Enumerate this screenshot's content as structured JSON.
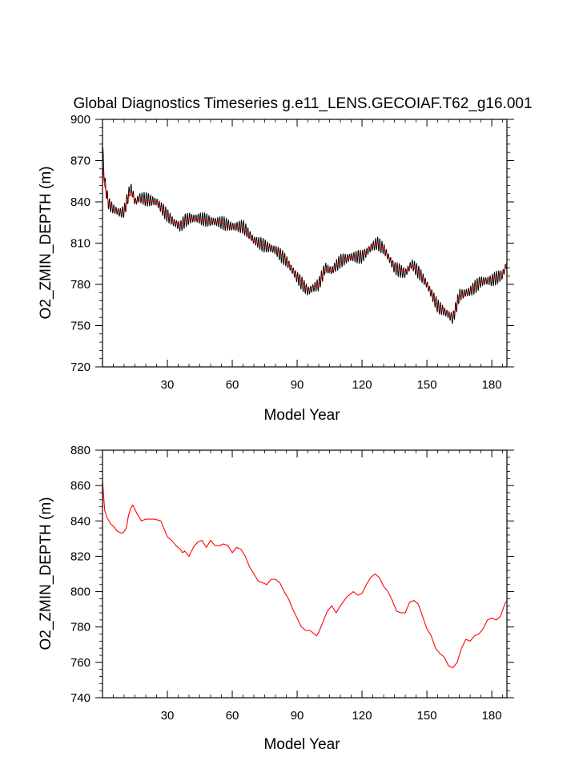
{
  "colors": {
    "mean_line": "#ff0000",
    "monthly_line": "#000000",
    "axis": "#000000",
    "background": "#ffffff"
  },
  "chart_data": [
    {
      "type": "line",
      "title": "Global Diagnostics Timeseries g.e11_LENS.GECOIAF.T62_g16.001",
      "xlabel": "Model Year",
      "ylabel": "O2_ZMIN_DEPTH (m)",
      "xlim": [
        0,
        187
      ],
      "ylim": [
        720,
        900
      ],
      "xticks": [
        30,
        60,
        90,
        120,
        150,
        180
      ],
      "xtick_labels": [
        "30",
        "60",
        "90",
        "120",
        "150",
        "180"
      ],
      "yticks": [
        720,
        750,
        780,
        810,
        840,
        870,
        900
      ],
      "ytick_labels": [
        "720",
        "750",
        "780",
        "810",
        "840",
        "870",
        "900"
      ],
      "monthly_amplitude": 5,
      "series": [
        {
          "name": "monthly",
          "color": "#000000",
          "x": [
            0,
            1,
            2,
            3,
            5,
            8,
            10,
            12,
            13,
            14,
            15,
            16,
            17,
            20,
            25,
            30,
            33,
            36,
            38,
            40,
            45,
            50,
            55,
            60,
            65,
            70,
            75,
            80,
            85,
            90,
            95,
            100,
            103,
            106,
            110,
            115,
            120,
            125,
            127,
            130,
            135,
            140,
            143,
            147,
            150,
            155,
            160,
            162,
            165,
            170,
            175,
            180,
            185,
            187
          ],
          "y": [
            880,
            855,
            845,
            838,
            835,
            832,
            833,
            845,
            850,
            846,
            840,
            841,
            843,
            842,
            840,
            830,
            825,
            822,
            826,
            828,
            828,
            826,
            825,
            822,
            822,
            812,
            808,
            805,
            797,
            785,
            775,
            780,
            792,
            790,
            797,
            800,
            800,
            808,
            810,
            806,
            792,
            788,
            795,
            787,
            780,
            764,
            758,
            755,
            772,
            775,
            782,
            783,
            787,
            795
          ]
        },
        {
          "name": "annual mean",
          "color": "#ff0000",
          "x": [
            0,
            1,
            2,
            3,
            5,
            8,
            10,
            12,
            13,
            14,
            15,
            16,
            17,
            20,
            25,
            30,
            33,
            36,
            38,
            40,
            45,
            50,
            55,
            60,
            65,
            70,
            75,
            80,
            85,
            90,
            95,
            100,
            103,
            106,
            110,
            115,
            120,
            125,
            127,
            130,
            135,
            140,
            143,
            147,
            150,
            155,
            160,
            162,
            165,
            170,
            175,
            180,
            185,
            187
          ],
          "y": [
            865,
            852,
            845,
            838,
            835,
            832,
            833,
            843,
            848,
            845,
            840,
            841,
            841,
            841,
            840,
            830,
            826,
            823,
            826,
            828,
            827,
            826,
            825,
            822,
            821,
            811,
            808,
            806,
            798,
            786,
            776,
            780,
            791,
            789,
            797,
            800,
            801,
            808,
            810,
            806,
            793,
            789,
            794,
            787,
            780,
            765,
            758,
            756,
            771,
            775,
            782,
            784,
            787,
            796
          ]
        }
      ]
    },
    {
      "type": "line",
      "title": "",
      "xlabel": "Model Year",
      "ylabel": "O2_ZMIN_DEPTH (m)",
      "xlim": [
        0,
        187
      ],
      "ylim": [
        740,
        880
      ],
      "xticks": [
        30,
        60,
        90,
        120,
        150,
        180
      ],
      "xtick_labels": [
        "30",
        "60",
        "90",
        "120",
        "150",
        "180"
      ],
      "yticks": [
        740,
        760,
        780,
        800,
        820,
        840,
        860,
        880
      ],
      "ytick_labels": [
        "740",
        "760",
        "780",
        "800",
        "820",
        "840",
        "860",
        "880"
      ],
      "series": [
        {
          "name": "annual mean",
          "color": "#ff0000",
          "x": [
            0,
            1,
            2,
            4,
            5,
            7,
            9,
            10,
            11,
            12,
            13,
            14,
            16,
            18,
            20,
            24,
            27,
            30,
            32,
            34,
            36,
            37,
            38,
            40,
            42,
            44,
            46,
            48,
            50,
            52,
            54,
            56,
            58,
            60,
            62,
            64,
            66,
            68,
            70,
            72,
            74,
            76,
            78,
            80,
            82,
            84,
            86,
            88,
            90,
            92,
            94,
            96,
            98,
            99,
            100,
            102,
            104,
            106,
            108,
            110,
            113,
            116,
            118,
            120,
            122,
            124,
            126,
            128,
            130,
            132,
            134,
            136,
            138,
            140,
            142,
            144,
            146,
            148,
            150,
            152,
            154,
            156,
            158,
            160,
            162,
            164,
            166,
            168,
            170,
            172,
            174,
            176,
            178,
            180,
            182,
            184,
            186,
            187
          ],
          "y": [
            863,
            846,
            842,
            838,
            837,
            834,
            833,
            834,
            836,
            843,
            847,
            849,
            844,
            840,
            841,
            841,
            840,
            831,
            829,
            826,
            824,
            822,
            823,
            820,
            825,
            828,
            829,
            825,
            829,
            826,
            826,
            827,
            826,
            822,
            825,
            824,
            820,
            814,
            810,
            806,
            805,
            804,
            807,
            807,
            805,
            800,
            796,
            790,
            785,
            780,
            778,
            778,
            776,
            775,
            777,
            783,
            789,
            792,
            788,
            792,
            797,
            800,
            798,
            799,
            804,
            808,
            810,
            808,
            803,
            800,
            795,
            789,
            788,
            788,
            794,
            795,
            793,
            786,
            779,
            775,
            768,
            765,
            763,
            758,
            757,
            760,
            768,
            773,
            772,
            775,
            776,
            779,
            784,
            785,
            784,
            786,
            793,
            795
          ]
        }
      ]
    }
  ]
}
